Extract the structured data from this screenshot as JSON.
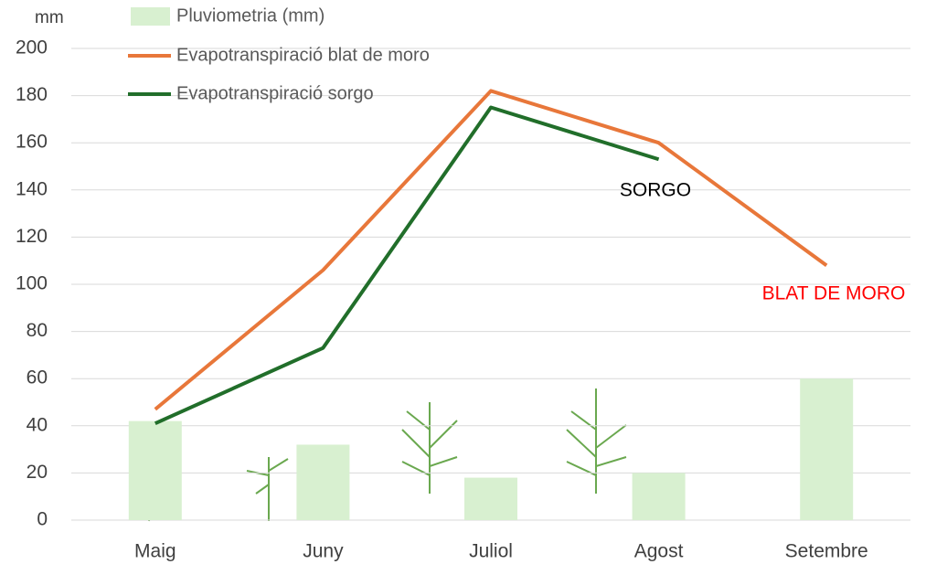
{
  "chart_data": {
    "type": "combo",
    "y_label": "mm",
    "categories": [
      "Maig",
      "Juny",
      "Juliol",
      "Agost",
      "Setembre"
    ],
    "series": [
      {
        "name": "Pluviometria (mm)",
        "type": "bar",
        "color": "#d8f0d0",
        "values": [
          42,
          32,
          18,
          20,
          60
        ]
      },
      {
        "name": "Evapotranspiració blat de moro",
        "type": "line",
        "color": "#e8773a",
        "values": [
          47,
          106,
          182,
          160,
          108
        ]
      },
      {
        "name": "Evapotranspiració sorgo",
        "type": "line",
        "color": "#216e2a",
        "values": [
          41,
          73,
          175,
          153,
          null
        ]
      }
    ],
    "annotations": [
      {
        "text": "SORGO",
        "color": "#000000"
      },
      {
        "text": "BLAT DE MORO",
        "color": "#ff0000"
      }
    ],
    "ylim": [
      0,
      200
    ],
    "yticks": [
      0,
      20,
      40,
      60,
      80,
      100,
      120,
      140,
      160,
      180,
      200
    ],
    "grid": true
  }
}
